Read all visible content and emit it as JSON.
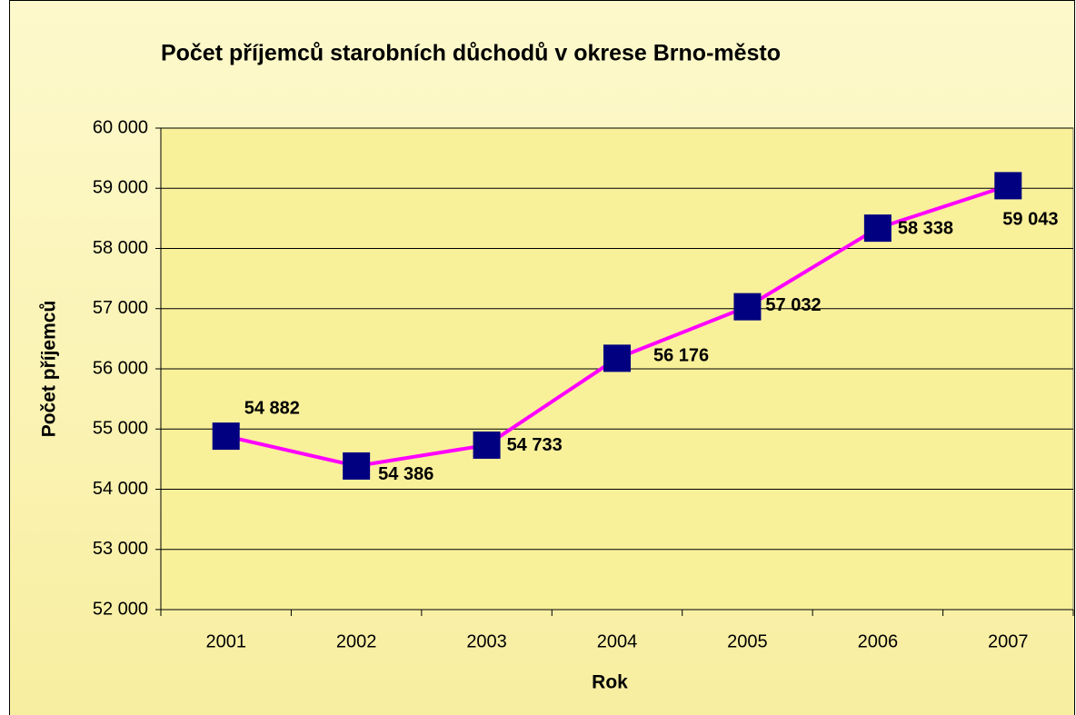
{
  "chart_data": {
    "type": "line",
    "title": "Počet příjemců starobních důchodů v okrese Brno-město",
    "x_label": "Rok",
    "y_label": "Počet příjemců",
    "categories": [
      "2001",
      "2002",
      "2003",
      "2004",
      "2005",
      "2006",
      "2007"
    ],
    "series": [
      {
        "name": "Počet příjemců",
        "color": "#ff00ff",
        "marker_color": "#000080",
        "values": [
          54882,
          54386,
          54733,
          56176,
          57032,
          58338,
          59043
        ],
        "value_labels": [
          "54 882",
          "54 386",
          "54 733",
          "56 176",
          "57 032",
          "58 338",
          "59 043"
        ]
      }
    ],
    "ylim": [
      52000,
      60000
    ],
    "yticks": [
      {
        "value": 52000,
        "label": "52 000"
      },
      {
        "value": 53000,
        "label": "53 000"
      },
      {
        "value": 54000,
        "label": "54 000"
      },
      {
        "value": 55000,
        "label": "55 000"
      },
      {
        "value": 56000,
        "label": "56 000"
      },
      {
        "value": 57000,
        "label": "57 000"
      },
      {
        "value": 58000,
        "label": "58 000"
      },
      {
        "value": 59000,
        "label": "59 000"
      },
      {
        "value": 60000,
        "label": "60 000"
      }
    ],
    "grid": true
  }
}
